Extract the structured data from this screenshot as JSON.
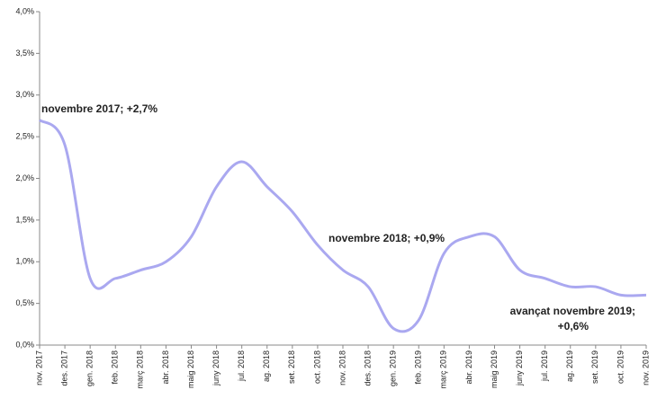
{
  "chart_data": {
    "type": "line",
    "categories": [
      "nov. 2017",
      "des. 2017",
      "gen. 2018",
      "feb. 2018",
      "març 2018",
      "abr. 2018",
      "maig 2018",
      "juny 2018",
      "jul. 2018",
      "ag. 2018",
      "set. 2018",
      "oct. 2018",
      "nov. 2018",
      "des. 2018",
      "gen. 2019",
      "feb. 2019",
      "març 2019",
      "abr. 2019",
      "maig 2019",
      "juny 2019",
      "jul. 2019",
      "ag. 2019",
      "set. 2019",
      "oct. 2019",
      "nov. 2019"
    ],
    "series": [
      {
        "color": "#aaa8f0",
        "values": [
          2.7,
          2.4,
          0.8,
          0.8,
          0.9,
          1.0,
          1.3,
          1.9,
          2.2,
          1.9,
          1.6,
          1.2,
          0.9,
          0.7,
          0.2,
          0.3,
          1.1,
          1.3,
          1.3,
          0.9,
          0.8,
          0.7,
          0.7,
          0.6,
          0.6
        ]
      }
    ],
    "ylim": [
      0,
      4
    ],
    "yticks": [
      {
        "value": 0,
        "label": "0,0%"
      },
      {
        "value": 0.5,
        "label": "0,5%"
      },
      {
        "value": 1,
        "label": "1,0%"
      },
      {
        "value": 1.5,
        "label": "1,5%"
      },
      {
        "value": 2,
        "label": "2,0%"
      },
      {
        "value": 2.5,
        "label": "2,5%"
      },
      {
        "value": 3,
        "label": "3,0%"
      },
      {
        "value": 3.5,
        "label": "3,5%"
      },
      {
        "value": 4,
        "label": "4,0%"
      }
    ],
    "grid": false,
    "annotations": [
      "novembre 2017; +2,7%",
      "novembre 2018;  +0,9%",
      "avançat novembre 2019;",
      "+0,6%"
    ]
  }
}
